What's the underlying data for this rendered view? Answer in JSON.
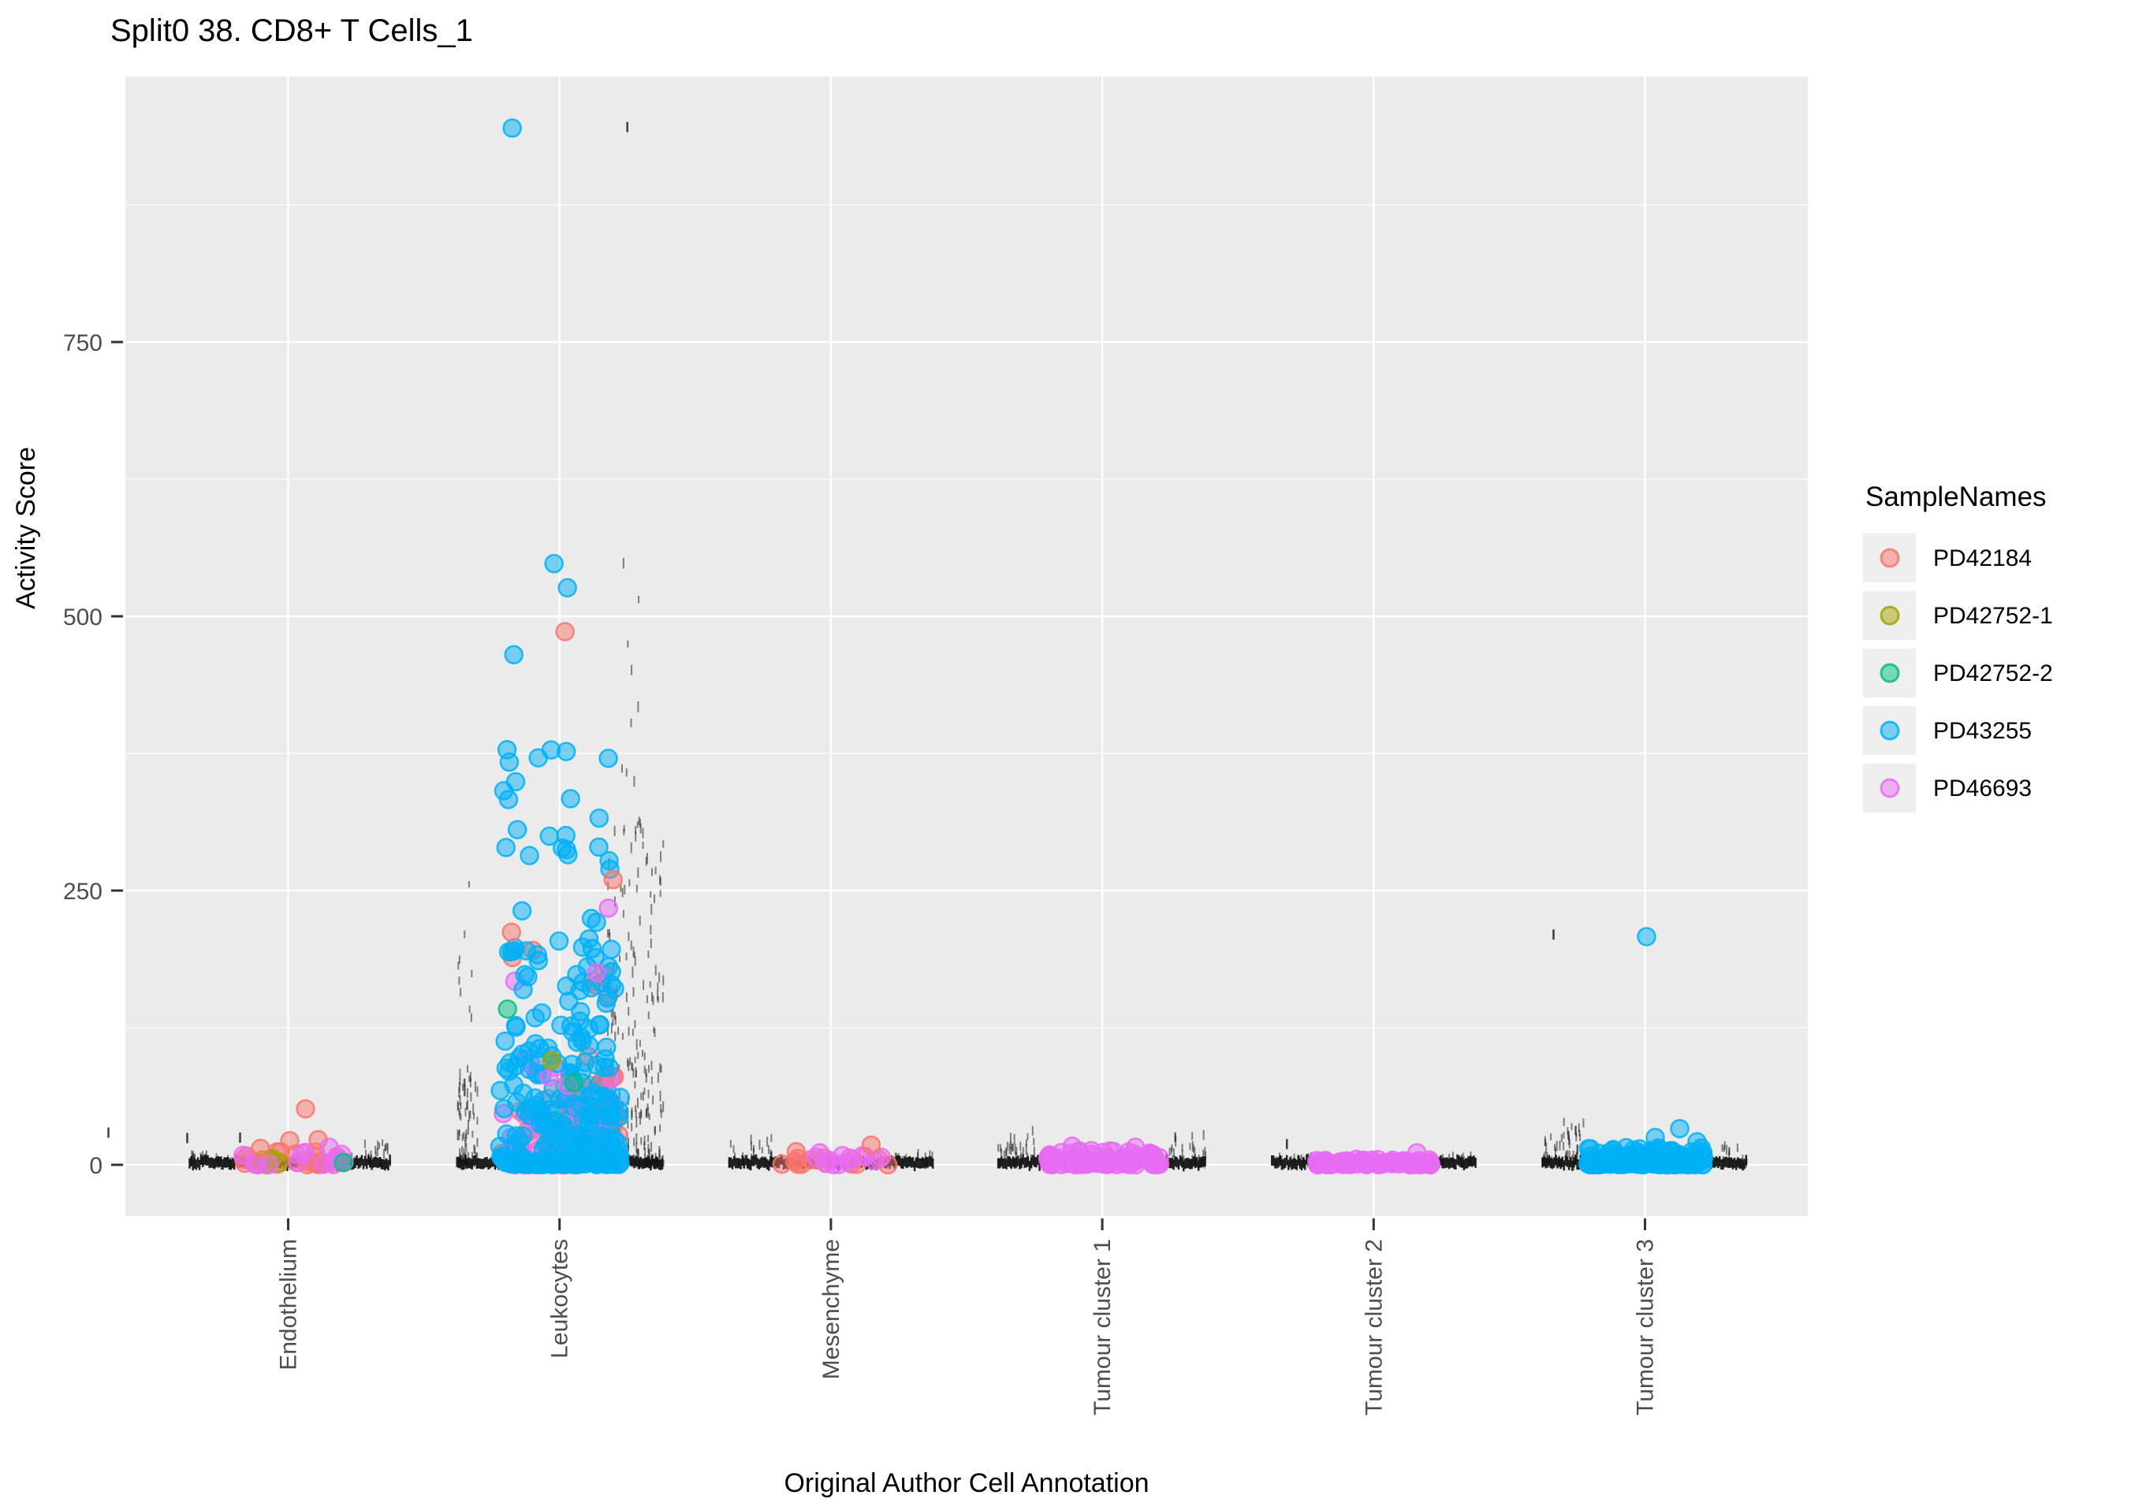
{
  "title": "Split0 38. CD8+ T Cells_1",
  "x_axis": {
    "title": "Original Author Cell Annotation"
  },
  "y_axis": {
    "title": "Activity Score"
  },
  "legend": {
    "title": "SampleNames",
    "entries": [
      {
        "label": "PD42184",
        "color": "#F8766D"
      },
      {
        "label": "PD42752-1",
        "color": "#A3A500"
      },
      {
        "label": "PD42752-2",
        "color": "#00BF7D"
      },
      {
        "label": "PD43255",
        "color": "#00B0F6"
      },
      {
        "label": "PD46693",
        "color": "#E76BF3"
      }
    ]
  },
  "style_colors": {
    "panel_background": "#EBEBEB",
    "gridline": "#FFFFFF",
    "tick_mark": "#333333",
    "tick_label": "#4D4D4D",
    "legend_key_background": "#EFEFEF",
    "black_points": "#111111"
  },
  "chart_data": {
    "type": "scatter",
    "subtype": "jittered-strip-plot",
    "x_categories": [
      "Endothelium",
      "Leukocytes",
      "Mesenchyme",
      "Tumour cluster 1",
      "Tumour cluster 2",
      "Tumour cluster 3"
    ],
    "samples": [
      {
        "name": "PD42184",
        "color": "#F8766D"
      },
      {
        "name": "PD42752-1",
        "color": "#A3A500"
      },
      {
        "name": "PD42752-2",
        "color": "#00BF7D"
      },
      {
        "name": "PD43255",
        "color": "#00B0F6"
      },
      {
        "name": "PD46693",
        "color": "#E76BF3"
      }
    ],
    "ylabel": "Activity Score",
    "xlabel": "Original Author Cell Annotation",
    "ylim": [
      -52,
      992
    ],
    "y_major_ticks": [
      0,
      250,
      500,
      750
    ],
    "y_minor_ticks": [
      125,
      375,
      625,
      875
    ],
    "grid": "major-and-minor-horizontal, major-vertical",
    "legend_position": "right",
    "clusters": [
      {
        "category": "Endothelium",
        "band": {
          "dx": [
            -125,
            130
          ]
        },
        "whiskers": [
          {
            "dx": [
              -125,
              -72
            ],
            "v": [
              0,
              8
            ],
            "n": 25,
            "pow": 2
          },
          {
            "dx": [
              78,
              130
            ],
            "v": [
              0,
              20
            ],
            "n": 25,
            "pow": 2
          }
        ],
        "stray_ticks": [
          {
            "dx": -228,
            "v": 28
          },
          {
            "dx": -128,
            "v": 23
          },
          {
            "dx": -61,
            "v": 23
          }
        ],
        "groups": [
          {
            "sample": "PD42184",
            "n": 22,
            "dx": [
              -70,
              75
            ],
            "v": [
              0,
              12
            ],
            "pow": 2
          },
          {
            "sample": "PD42752-1",
            "n": 5,
            "dx": [
              -50,
              -10
            ],
            "v": [
              0,
              6
            ],
            "pow": 1.5
          },
          {
            "sample": "PD46693",
            "n": 14,
            "dx": [
              -65,
              73
            ],
            "v": [
              0,
              14
            ],
            "pow": 2
          }
        ],
        "points": [
          {
            "sample": "PD42752-2",
            "dx": 70,
            "v": 2
          },
          {
            "sample": "PD42184",
            "dx": 22,
            "v": 51
          },
          {
            "sample": "PD42184",
            "dx": 2,
            "v": 22
          },
          {
            "sample": "PD42184",
            "dx": 38,
            "v": 23
          },
          {
            "sample": "PD42184",
            "dx": -35,
            "v": 15
          },
          {
            "sample": "PD46693",
            "dx": 52,
            "v": 16
          }
        ]
      },
      {
        "category": "Leukocytes",
        "band": {
          "dx": [
            -130,
            132
          ]
        },
        "whiskers": [
          {
            "dx": [
              -130,
              -104
            ],
            "v": [
              0,
              85
            ],
            "n": 80,
            "pow": 2
          },
          {
            "dx": [
              -132,
              -110
            ],
            "v": [
              85,
              260
            ],
            "n": 10,
            "pow": 1.5
          },
          {
            "dx": [
              60,
              132
            ],
            "v": [
              0,
              310
            ],
            "n": 260,
            "pow": 2.5
          },
          {
            "dx": [
              78,
              102
            ],
            "v": [
              300,
              560
            ],
            "n": 12,
            "pow": 1.5
          }
        ],
        "stray_ticks": [
          {
            "dx": 86,
            "v": 945
          }
        ],
        "groups": [
          {
            "sample": "PD42184",
            "n": 55,
            "dx": [
              -74,
              76
            ],
            "v": [
              0,
              75
            ],
            "pow": 2
          },
          {
            "sample": "PD42752-1",
            "n": 10,
            "dx": [
              -70,
              50
            ],
            "v": [
              0,
              55
            ],
            "pow": 1.8
          },
          {
            "sample": "PD42752-2",
            "n": 5,
            "dx": [
              -65,
              60
            ],
            "v": [
              0,
              50
            ],
            "pow": 1.8
          },
          {
            "sample": "PD46693",
            "n": 55,
            "dx": [
              -72,
              76
            ],
            "v": [
              0,
              60
            ],
            "pow": 2
          },
          {
            "sample": "PD43255",
            "n": 150,
            "dx": [
              -76,
              78
            ],
            "v": [
              0,
              85
            ],
            "pow": 2.2
          },
          {
            "sample": "PD42184",
            "n": 10,
            "dx": [
              -65,
              70
            ],
            "v": [
              80,
              200
            ],
            "pow": 1.6
          },
          {
            "sample": "PD46693",
            "n": 7,
            "dx": [
              -60,
              70
            ],
            "v": [
              70,
              180
            ],
            "pow": 1.6
          },
          {
            "sample": "PD43255",
            "n": 70,
            "dx": [
              -70,
              74
            ],
            "v": [
              85,
              230
            ],
            "pow": 1.6
          },
          {
            "sample": "PD43255",
            "n": 22,
            "dx": [
              -72,
              65
            ],
            "v": [
              230,
              380
            ],
            "pow": 1
          },
          {
            "sample": "PD43255",
            "n": 40,
            "dx": [
              -76,
              78
            ],
            "v": [
              0,
              3
            ],
            "pow": 1
          }
        ],
        "points": [
          {
            "sample": "PD42752-2",
            "dx": -66,
            "v": 142
          },
          {
            "sample": "PD42752-2",
            "dx": 18,
            "v": 75
          },
          {
            "sample": "PD42752-1",
            "dx": -10,
            "v": 95
          },
          {
            "sample": "PD46693",
            "dx": 62,
            "v": 234
          },
          {
            "sample": "PD46693",
            "dx": 47,
            "v": 175
          },
          {
            "sample": "PD42184",
            "dx": -61,
            "v": 212
          },
          {
            "sample": "PD42184",
            "dx": 68,
            "v": 260
          },
          {
            "sample": "PD43255",
            "dx": -27,
            "v": 371
          },
          {
            "sample": "PD43255",
            "dx": -58,
            "v": 465
          },
          {
            "sample": "PD42184",
            "dx": 7,
            "v": 486
          },
          {
            "sample": "PD43255",
            "dx": 10,
            "v": 526
          },
          {
            "sample": "PD43255",
            "dx": -7,
            "v": 548
          },
          {
            "sample": "PD43255",
            "dx": -60,
            "v": 945
          }
        ]
      },
      {
        "category": "Mesenchyme",
        "band": {
          "dx": [
            -129,
            130
          ]
        },
        "whiskers": [
          {
            "dx": [
              -129,
              -75
            ],
            "v": [
              0,
              24
            ],
            "n": 30,
            "pow": 2
          },
          {
            "dx": [
              79,
              130
            ],
            "v": [
              0,
              8
            ],
            "n": 20,
            "pow": 2
          }
        ],
        "stray_ticks": [],
        "groups": [
          {
            "sample": "PD42184",
            "n": 14,
            "dx": [
              -72,
              74
            ],
            "v": [
              0,
              8
            ],
            "pow": 1.6
          },
          {
            "sample": "PD46693",
            "n": 12,
            "dx": [
              -69,
              71
            ],
            "v": [
              0,
              9
            ],
            "pow": 1.6
          }
        ],
        "points": [
          {
            "sample": "PD42184",
            "dx": 51,
            "v": 18
          },
          {
            "sample": "PD42184",
            "dx": -44,
            "v": 12
          },
          {
            "sample": "PD46693",
            "dx": -14,
            "v": 11
          }
        ]
      },
      {
        "category": "Tumour cluster 1",
        "band": {
          "dx": [
            -132,
            131
          ]
        },
        "whiskers": [
          {
            "dx": [
              -132,
              -78
            ],
            "v": [
              0,
              30
            ],
            "n": 40,
            "pow": 2
          },
          {
            "dx": [
              80,
              131
            ],
            "v": [
              0,
              26
            ],
            "n": 35,
            "pow": 2
          }
        ],
        "stray_ticks": [],
        "groups": [
          {
            "sample": "PD43255",
            "n": 2,
            "dx": [
              -28,
              32
            ],
            "v": [
              0,
              4
            ],
            "pow": 1
          },
          {
            "sample": "PD46693",
            "n": 85,
            "dx": [
              -75,
              76
            ],
            "v": [
              0,
              13
            ],
            "pow": 1.8
          }
        ],
        "points": [
          {
            "sample": "PD46693",
            "dx": -38,
            "v": 17
          },
          {
            "sample": "PD46693",
            "dx": 42,
            "v": 16
          }
        ]
      },
      {
        "category": "Tumour cluster 2",
        "band": {
          "dx": [
            -129,
            130
          ]
        },
        "whiskers": [
          {
            "dx": [
              -129,
              -76
            ],
            "v": [
              0,
              5
            ],
            "n": 20,
            "pow": 1.5
          },
          {
            "dx": [
              78,
              130
            ],
            "v": [
              0,
              5
            ],
            "n": 20,
            "pow": 1.5
          }
        ],
        "stray_ticks": [
          {
            "dx": -110,
            "v": 16
          }
        ],
        "groups": [
          {
            "sample": "PD46693",
            "n": 70,
            "dx": [
              -72,
              74
            ],
            "v": [
              0,
              5
            ],
            "pow": 1.4
          }
        ],
        "points": [
          {
            "sample": "PD46693",
            "dx": 55,
            "v": 11
          }
        ]
      },
      {
        "category": "Tumour cluster 3",
        "band": {
          "dx": [
            -130,
            130
          ]
        },
        "whiskers": [
          {
            "dx": [
              -130,
              -75
            ],
            "v": [
              0,
              38
            ],
            "n": 60,
            "pow": 2
          },
          {
            "dx": [
              76,
              130
            ],
            "v": [
              0,
              16
            ],
            "n": 30,
            "pow": 2
          }
        ],
        "stray_ticks": [
          {
            "dx": -116,
            "v": 208
          }
        ],
        "groups": [
          {
            "sample": "PD43255",
            "n": 120,
            "dx": [
              -75,
              75
            ],
            "v": [
              0,
              16
            ],
            "pow": 2
          },
          {
            "sample": "PD43255",
            "n": 30,
            "dx": [
              -75,
              75
            ],
            "v": [
              0,
              2
            ],
            "pow": 1
          }
        ],
        "points": [
          {
            "sample": "PD43255",
            "dx": 2,
            "v": 208
          },
          {
            "sample": "PD43255",
            "dx": 44,
            "v": 33
          },
          {
            "sample": "PD43255",
            "dx": 13,
            "v": 25
          },
          {
            "sample": "PD43255",
            "dx": 66,
            "v": 21
          }
        ]
      }
    ]
  }
}
